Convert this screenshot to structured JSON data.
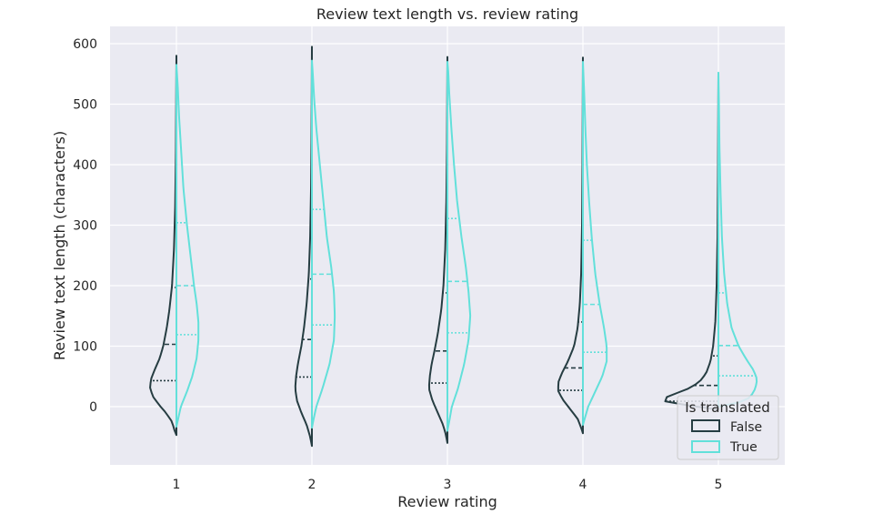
{
  "chart_data": {
    "type": "violin",
    "split": true,
    "title": "Review text length vs. review rating",
    "xlabel": "Review rating",
    "ylabel": "Review text length (characters)",
    "categories": [
      "1",
      "2",
      "3",
      "4",
      "5"
    ],
    "yticks": [
      0,
      100,
      200,
      300,
      400,
      500,
      600
    ],
    "ylim": [
      -95,
      628
    ],
    "grid": true,
    "legend": {
      "title": "Is translated",
      "placement": "bottom-right",
      "entries": [
        "False",
        "True"
      ]
    },
    "colors": {
      "false": "#263d42",
      "true": "#62e0da",
      "plot_background": "#eaeaf2",
      "grid": "#ffffff"
    },
    "series": [
      {
        "name": "False",
        "side": "left",
        "color": "#263d42",
        "violins": [
          {
            "category": "1",
            "quartiles": [
              43,
              103,
              197
            ],
            "profile": [
              [
                -47,
                0.0
              ],
              [
                -40,
                0.02
              ],
              [
                -25,
                0.05
              ],
              [
                -10,
                0.12
              ],
              [
                0,
                0.18
              ],
              [
                15,
                0.26
              ],
              [
                30,
                0.3
              ],
              [
                45,
                0.29
              ],
              [
                60,
                0.25
              ],
              [
                80,
                0.19
              ],
              [
                100,
                0.15
              ],
              [
                130,
                0.11
              ],
              [
                160,
                0.08
              ],
              [
                200,
                0.05
              ],
              [
                260,
                0.028
              ],
              [
                330,
                0.014
              ],
              [
                420,
                0.006
              ],
              [
                500,
                0.003
              ],
              [
                580,
                0.0
              ]
            ]
          },
          {
            "category": "2",
            "quartiles": [
              49,
              111,
              211
            ],
            "profile": [
              [
                -65,
                0.0
              ],
              [
                -50,
                0.02
              ],
              [
                -30,
                0.06
              ],
              [
                -10,
                0.12
              ],
              [
                10,
                0.17
              ],
              [
                30,
                0.19
              ],
              [
                50,
                0.18
              ],
              [
                70,
                0.16
              ],
              [
                100,
                0.12
              ],
              [
                130,
                0.09
              ],
              [
                170,
                0.06
              ],
              [
                220,
                0.035
              ],
              [
                280,
                0.02
              ],
              [
                360,
                0.01
              ],
              [
                440,
                0.005
              ],
              [
                520,
                0.002
              ],
              [
                595,
                0.0
              ]
            ]
          },
          {
            "category": "3",
            "quartiles": [
              39,
              92,
              188
            ],
            "profile": [
              [
                -60,
                0.0
              ],
              [
                -45,
                0.02
              ],
              [
                -30,
                0.05
              ],
              [
                -10,
                0.11
              ],
              [
                10,
                0.17
              ],
              [
                30,
                0.21
              ],
              [
                50,
                0.2
              ],
              [
                70,
                0.18
              ],
              [
                90,
                0.15
              ],
              [
                120,
                0.11
              ],
              [
                160,
                0.07
              ],
              [
                200,
                0.045
              ],
              [
                260,
                0.025
              ],
              [
                340,
                0.012
              ],
              [
                430,
                0.005
              ],
              [
                520,
                0.002
              ],
              [
                578,
                0.0
              ]
            ]
          },
          {
            "category": "4",
            "quartiles": [
              27,
              64,
              140
            ],
            "profile": [
              [
                -44,
                0.0
              ],
              [
                -35,
                0.02
              ],
              [
                -20,
                0.06
              ],
              [
                -5,
                0.14
              ],
              [
                10,
                0.22
              ],
              [
                25,
                0.28
              ],
              [
                40,
                0.28
              ],
              [
                55,
                0.24
              ],
              [
                75,
                0.17
              ],
              [
                100,
                0.1
              ],
              [
                130,
                0.06
              ],
              [
                170,
                0.035
              ],
              [
                220,
                0.02
              ],
              [
                300,
                0.01
              ],
              [
                400,
                0.005
              ],
              [
                500,
                0.002
              ],
              [
                577,
                0.0
              ]
            ]
          },
          {
            "category": "5",
            "quartiles": [
              9,
              35,
              84
            ],
            "profile": [
              [
                -5,
                0.0
              ],
              [
                0,
                0.2
              ],
              [
                5,
                0.55
              ],
              [
                10,
                0.62
              ],
              [
                15,
                0.6
              ],
              [
                22,
                0.48
              ],
              [
                30,
                0.34
              ],
              [
                40,
                0.22
              ],
              [
                55,
                0.14
              ],
              [
                75,
                0.09
              ],
              [
                100,
                0.06
              ],
              [
                140,
                0.035
              ],
              [
                200,
                0.02
              ],
              [
                280,
                0.01
              ],
              [
                380,
                0.005
              ],
              [
                480,
                0.002
              ],
              [
                550,
                0.0
              ]
            ]
          }
        ]
      },
      {
        "name": "True",
        "side": "right",
        "color": "#62e0da",
        "violins": [
          {
            "category": "1",
            "quartiles": [
              119,
              200,
              304
            ],
            "profile": [
              [
                -33,
                0.0
              ],
              [
                -20,
                0.02
              ],
              [
                0,
                0.05
              ],
              [
                25,
                0.12
              ],
              [
                50,
                0.18
              ],
              [
                80,
                0.23
              ],
              [
                110,
                0.25
              ],
              [
                140,
                0.25
              ],
              [
                170,
                0.23
              ],
              [
                200,
                0.2
              ],
              [
                250,
                0.16
              ],
              [
                300,
                0.12
              ],
              [
                360,
                0.08
              ],
              [
                420,
                0.055
              ],
              [
                480,
                0.03
              ],
              [
                530,
                0.015
              ],
              [
                565,
                0.0
              ]
            ]
          },
          {
            "category": "2",
            "quartiles": [
              135,
              219,
              326
            ],
            "profile": [
              [
                -35,
                0.0
              ],
              [
                -20,
                0.02
              ],
              [
                0,
                0.05
              ],
              [
                30,
                0.12
              ],
              [
                70,
                0.2
              ],
              [
                110,
                0.25
              ],
              [
                150,
                0.26
              ],
              [
                190,
                0.25
              ],
              [
                230,
                0.22
              ],
              [
                280,
                0.17
              ],
              [
                340,
                0.13
              ],
              [
                400,
                0.09
              ],
              [
                460,
                0.05
              ],
              [
                510,
                0.025
              ],
              [
                550,
                0.01
              ],
              [
                572,
                0.0
              ]
            ]
          },
          {
            "category": "3",
            "quartiles": [
              122,
              207,
              311
            ],
            "profile": [
              [
                -40,
                0.0
              ],
              [
                -25,
                0.02
              ],
              [
                0,
                0.05
              ],
              [
                30,
                0.12
              ],
              [
                70,
                0.19
              ],
              [
                110,
                0.24
              ],
              [
                150,
                0.26
              ],
              [
                190,
                0.24
              ],
              [
                230,
                0.21
              ],
              [
                280,
                0.16
              ],
              [
                340,
                0.11
              ],
              [
                400,
                0.075
              ],
              [
                460,
                0.045
              ],
              [
                520,
                0.02
              ],
              [
                553,
                0.01
              ],
              [
                570,
                0.0
              ]
            ]
          },
          {
            "category": "4",
            "quartiles": [
              90,
              169,
              275
            ],
            "profile": [
              [
                -30,
                0.0
              ],
              [
                -15,
                0.03
              ],
              [
                0,
                0.06
              ],
              [
                25,
                0.14
              ],
              [
                50,
                0.22
              ],
              [
                75,
                0.27
              ],
              [
                100,
                0.27
              ],
              [
                130,
                0.24
              ],
              [
                170,
                0.19
              ],
              [
                220,
                0.14
              ],
              [
                280,
                0.1
              ],
              [
                340,
                0.07
              ],
              [
                400,
                0.045
              ],
              [
                460,
                0.028
              ],
              [
                520,
                0.014
              ],
              [
                570,
                0.0
              ]
            ]
          },
          {
            "category": "5",
            "quartiles": [
              51,
              101,
              188
            ],
            "profile": [
              [
                0,
                0.0
              ],
              [
                5,
                0.2
              ],
              [
                15,
                0.36
              ],
              [
                30,
                0.42
              ],
              [
                45,
                0.44
              ],
              [
                60,
                0.4
              ],
              [
                80,
                0.31
              ],
              [
                100,
                0.23
              ],
              [
                130,
                0.15
              ],
              [
                170,
                0.1
              ],
              [
                220,
                0.065
              ],
              [
                280,
                0.04
              ],
              [
                350,
                0.025
              ],
              [
                430,
                0.012
              ],
              [
                500,
                0.006
              ],
              [
                552,
                0.0
              ]
            ]
          }
        ]
      }
    ]
  }
}
